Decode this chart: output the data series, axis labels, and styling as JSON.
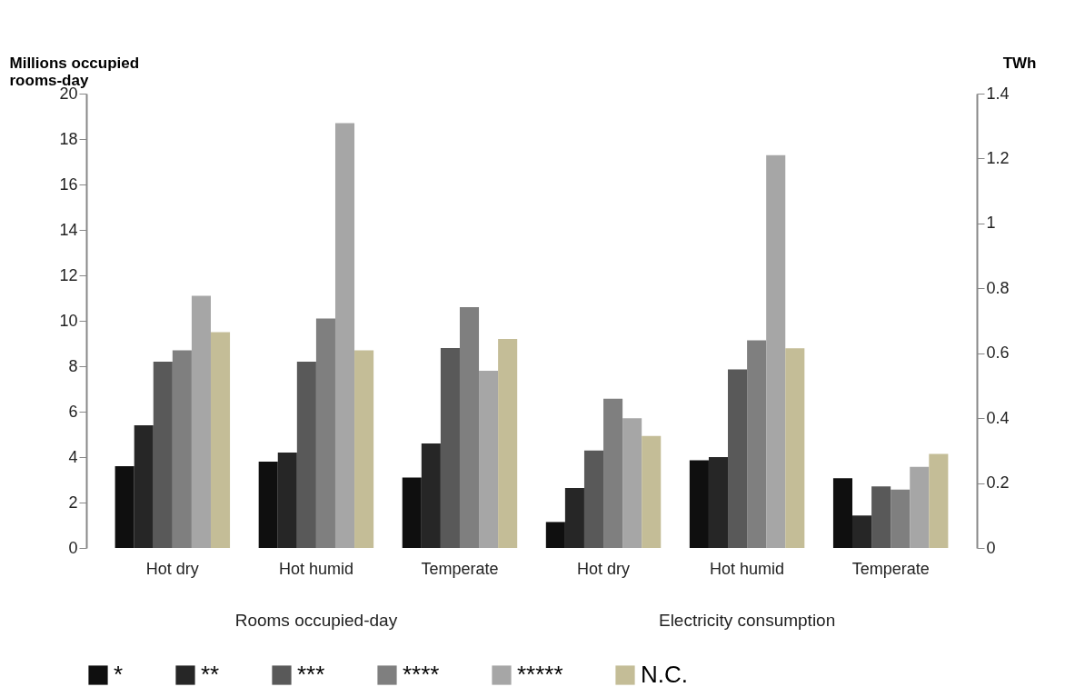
{
  "chart_data": {
    "type": "bar",
    "ylabel": "Millions occupied rooms-day",
    "y2label": "TWh",
    "categories": [
      "Hot dry",
      "Hot humid",
      "Temperate",
      "Hot dry",
      "Hot humid",
      "Temperate"
    ],
    "series": [
      {
        "name": "*",
        "color": "#0f0f0f",
        "values": [
          3.6,
          3.8,
          3.1,
          null,
          null,
          null
        ]
      },
      {
        "name": "**",
        "color": "#262626",
        "values": [
          5.4,
          4.2,
          4.6,
          null,
          null,
          null
        ]
      },
      {
        "name": "***",
        "color": "#595959",
        "values": [
          8.2,
          8.2,
          8.8,
          null,
          null,
          null
        ]
      },
      {
        "name": "****",
        "color": "#7f7f7f",
        "values": [
          8.7,
          10.1,
          10.6,
          null,
          null,
          null
        ]
      },
      {
        "name": "*****",
        "color": "#a6a6a6",
        "values": [
          11.1,
          18.7,
          7.8,
          null,
          null,
          null
        ]
      },
      {
        "name": "N.C.",
        "color": "#c4bd97",
        "values": [
          9.5,
          8.7,
          9.2,
          null,
          null,
          null
        ]
      },
      {
        "color": "#0f0f0f",
        "axis": "y2",
        "values": [
          null,
          null,
          null,
          0.08,
          0.27,
          0.215
        ]
      },
      {
        "color": "#262626",
        "axis": "y2",
        "values": [
          null,
          null,
          null,
          0.185,
          0.28,
          0.1
        ]
      },
      {
        "color": "#595959",
        "axis": "y2",
        "values": [
          null,
          null,
          null,
          0.3,
          0.55,
          0.19
        ]
      },
      {
        "color": "#7f7f7f",
        "axis": "y2",
        "values": [
          null,
          null,
          null,
          0.46,
          0.64,
          0.18
        ]
      },
      {
        "color": "#a6a6a6",
        "axis": "y2",
        "values": [
          null,
          null,
          null,
          0.4,
          1.21,
          0.25
        ]
      },
      {
        "color": "#c4bd97",
        "axis": "y2",
        "values": [
          null,
          null,
          null,
          0.345,
          0.615,
          0.29
        ]
      }
    ],
    "ylim": [
      0,
      20
    ],
    "yticks": [
      0,
      2,
      4,
      6,
      8,
      10,
      12,
      14,
      16,
      18,
      20
    ],
    "y2lim": [
      0,
      1.4
    ],
    "y2ticks": [
      0,
      0.2,
      0.4,
      0.6,
      0.8,
      1,
      1.2,
      1.4
    ],
    "annotations": [
      "Rooms occupied-day",
      "Electricity consumption"
    ],
    "grid": false,
    "legend": "bottom"
  }
}
